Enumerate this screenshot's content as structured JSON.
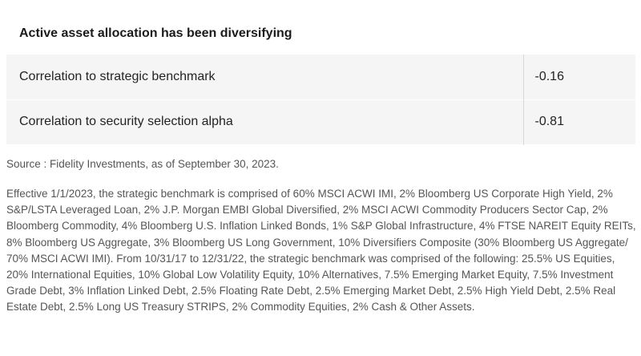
{
  "table": {
    "title": "Active asset allocation has been diversifying",
    "rows": [
      {
        "label": "Correlation to strategic benchmark",
        "value": "-0.16"
      },
      {
        "label": "Correlation to security selection alpha",
        "value": "-0.81"
      }
    ]
  },
  "source_text": "Source : Fidelity Investments, as of September 30, 2023.",
  "footnote_text": "Effective 1/1/2023, the strategic benchmark is comprised of 60% MSCI ACWI IMI, 2% Bloomberg US Corporate High Yield, 2% S&P/LSTA Leveraged Loan, 2% J.P. Morgan EMBI Global Diversified, 2% MSCI ACWI Commodity Producers Sector Cap, 2% Bloomberg Commodity, 4% Bloomberg U.S. Inflation Linked Bonds, 1% S&P Global Infrastructure, 4% FTSE NAREIT Equity REITs, 8% Bloomberg US Aggregate, 3% Bloomberg US Long Government, 10% Diversifiers Composite (30% Bloomberg US Aggregate/ 70% MSCI ACWI IMI). From 10/31/17 to 12/31/22, the strategic benchmark was comprised of the following: 25.5% US Equities, 20% International Equities, 10% Global Low Volatility Equity, 10% Alternatives, 7.5% Emerging Market Equity, 7.5% Investment Grade Debt, 3% Inflation Linked Debt, 2.5% Floating Rate Debt, 2.5% Emerging Market Debt, 2.5% High Yield Debt, 2.5% Real Estate Debt, 2.5% Long US Treasury STRIPS, 2% Commodity Equities, 2% Cash & Other Assets."
}
